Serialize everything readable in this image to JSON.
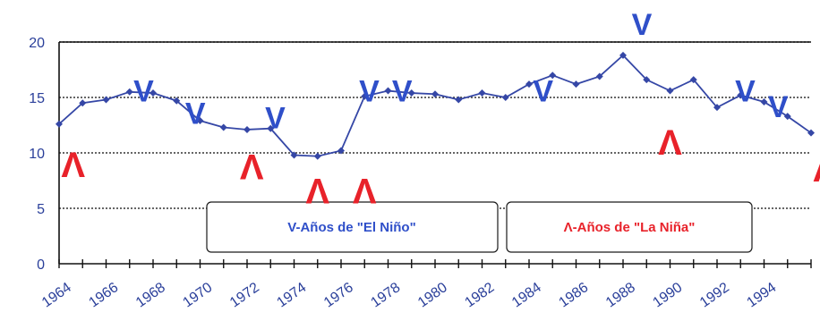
{
  "chart_data": {
    "type": "line",
    "title": "",
    "xlabel": "",
    "ylabel": "",
    "xlim": [
      1964,
      1996
    ],
    "ylim": [
      0,
      20
    ],
    "grid": true,
    "x_tick_labels": [
      "1964",
      "1966",
      "1968",
      "1970",
      "1972",
      "1974",
      "1976",
      "1978",
      "1980",
      "1982",
      "1984",
      "1986",
      "1988",
      "1990",
      "1992",
      "1994"
    ],
    "y_tick_labels": [
      "0",
      "5",
      "10",
      "15",
      "20"
    ],
    "series": [
      {
        "color": "#3547a6",
        "x": [
          1964,
          1965,
          1966,
          1967,
          1968,
          1969,
          1970,
          1971,
          1972,
          1973,
          1974,
          1975,
          1976,
          1977,
          1978,
          1979,
          1980,
          1981,
          1982,
          1983,
          1984,
          1985,
          1986,
          1987,
          1988,
          1989,
          1990,
          1991,
          1992,
          1993,
          1994,
          1995,
          1996
        ],
        "y": [
          12.6,
          14.5,
          14.8,
          15.5,
          15.4,
          14.7,
          12.9,
          12.3,
          12.1,
          12.2,
          9.8,
          9.7,
          10.2,
          15.1,
          15.6,
          15.4,
          15.3,
          14.8,
          15.4,
          15.0,
          16.2,
          17.0,
          16.2,
          16.9,
          18.8,
          16.6,
          15.6,
          16.6,
          14.1,
          15.2,
          14.6,
          13.3,
          11.8
        ]
      }
    ],
    "annotations": {
      "el_nino_symbol": "V",
      "la_nina_symbol": "Λ",
      "el_nino_color": "#2f4fc9",
      "la_nina_color": "#e8222a",
      "el_nino": [
        {
          "x": 1967.6,
          "y": 15.6
        },
        {
          "x": 1969.8,
          "y": 13.6
        },
        {
          "x": 1973.2,
          "y": 13.2
        },
        {
          "x": 1977.2,
          "y": 15.6
        },
        {
          "x": 1978.6,
          "y": 15.6
        },
        {
          "x": 1984.6,
          "y": 15.6
        },
        {
          "x": 1988.8,
          "y": 21.6
        },
        {
          "x": 1993.2,
          "y": 15.6
        },
        {
          "x": 1994.6,
          "y": 14.2
        }
      ],
      "la_nina": [
        {
          "x": 1964.6,
          "y": 8.8
        },
        {
          "x": 1972.2,
          "y": 8.6
        },
        {
          "x": 1975.0,
          "y": 6.4
        },
        {
          "x": 1977.0,
          "y": 6.4
        },
        {
          "x": 1990.0,
          "y": 10.8
        },
        {
          "x": 1996.6,
          "y": 8.4
        }
      ]
    },
    "legend": [
      {
        "label": "V-Años de \"El Niño\"",
        "color": "#2f4fc9"
      },
      {
        "label": "Λ-Años de \"La Niña\"",
        "color": "#e8222a"
      }
    ]
  }
}
